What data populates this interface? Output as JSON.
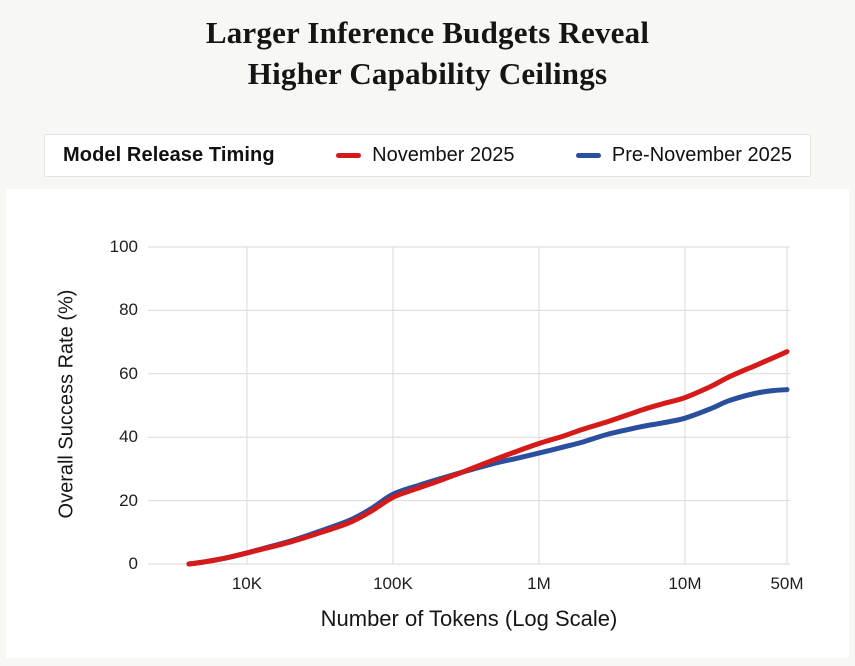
{
  "title": {
    "line1": "Larger Inference Budgets Reveal",
    "line2": "Higher Capability Ceilings"
  },
  "legend": {
    "label": "Model Release Timing",
    "items": [
      {
        "label": "November 2025",
        "color": "#d61a19"
      },
      {
        "label": "Pre-November 2025",
        "color": "#2a4f9f"
      }
    ]
  },
  "colors": {
    "background": "#f7f7f4",
    "card": "#ffffff",
    "gridline": "#d9d9d9",
    "text": "#161616"
  },
  "chart_data": {
    "type": "line",
    "title": "Larger Inference Budgets Reveal Higher Capability Ceilings",
    "xlabel": "Number of Tokens (Log Scale)",
    "ylabel": "Overall Success Rate (%)",
    "x_scale": "log",
    "x_domain": [
      2100,
      52400000
    ],
    "ylim": [
      0,
      100
    ],
    "grid": true,
    "x_ticks": [
      {
        "value": 10000,
        "label": "10K"
      },
      {
        "value": 100000,
        "label": "100K"
      },
      {
        "value": 1000000,
        "label": "1M"
      },
      {
        "value": 10000000,
        "label": "10M"
      },
      {
        "value": 50000000,
        "label": "50M"
      }
    ],
    "y_ticks": [
      {
        "value": 0,
        "label": "0"
      },
      {
        "value": 20,
        "label": "20"
      },
      {
        "value": 40,
        "label": "40"
      },
      {
        "value": 60,
        "label": "60"
      },
      {
        "value": 80,
        "label": "80"
      },
      {
        "value": 100,
        "label": "100"
      }
    ],
    "series": [
      {
        "name": "Pre-November 2025",
        "color": "#2a4f9f",
        "points": [
          [
            4000,
            0
          ],
          [
            5000,
            0.6
          ],
          [
            7000,
            1.8
          ],
          [
            10000,
            3.5
          ],
          [
            15000,
            5.7
          ],
          [
            20000,
            7.3
          ],
          [
            30000,
            10
          ],
          [
            50000,
            13.7
          ],
          [
            70000,
            17.3
          ],
          [
            100000,
            22
          ],
          [
            150000,
            24.8
          ],
          [
            200000,
            26.6
          ],
          [
            300000,
            29
          ],
          [
            500000,
            31.8
          ],
          [
            700000,
            33.3
          ],
          [
            1000000,
            35
          ],
          [
            1500000,
            37
          ],
          [
            2000000,
            38.5
          ],
          [
            3000000,
            41
          ],
          [
            5000000,
            43.3
          ],
          [
            7000000,
            44.5
          ],
          [
            10000000,
            46
          ],
          [
            15000000,
            49
          ],
          [
            20000000,
            51.5
          ],
          [
            30000000,
            53.8
          ],
          [
            40000000,
            54.7
          ],
          [
            50000000,
            55
          ]
        ]
      },
      {
        "name": "November 2025",
        "color": "#d61a19",
        "points": [
          [
            4000,
            0
          ],
          [
            5000,
            0.6
          ],
          [
            7000,
            1.8
          ],
          [
            10000,
            3.5
          ],
          [
            15000,
            5.5
          ],
          [
            20000,
            7
          ],
          [
            30000,
            9.5
          ],
          [
            50000,
            13
          ],
          [
            70000,
            16.5
          ],
          [
            100000,
            21
          ],
          [
            150000,
            24
          ],
          [
            200000,
            26
          ],
          [
            300000,
            29
          ],
          [
            500000,
            33
          ],
          [
            700000,
            35.5
          ],
          [
            1000000,
            38
          ],
          [
            1500000,
            40.5
          ],
          [
            2000000,
            42.5
          ],
          [
            3000000,
            45
          ],
          [
            5000000,
            48.5
          ],
          [
            7000000,
            50.5
          ],
          [
            10000000,
            52.5
          ],
          [
            15000000,
            56
          ],
          [
            20000000,
            59
          ],
          [
            30000000,
            62.5
          ],
          [
            40000000,
            65
          ],
          [
            50000000,
            67
          ]
        ]
      }
    ]
  }
}
